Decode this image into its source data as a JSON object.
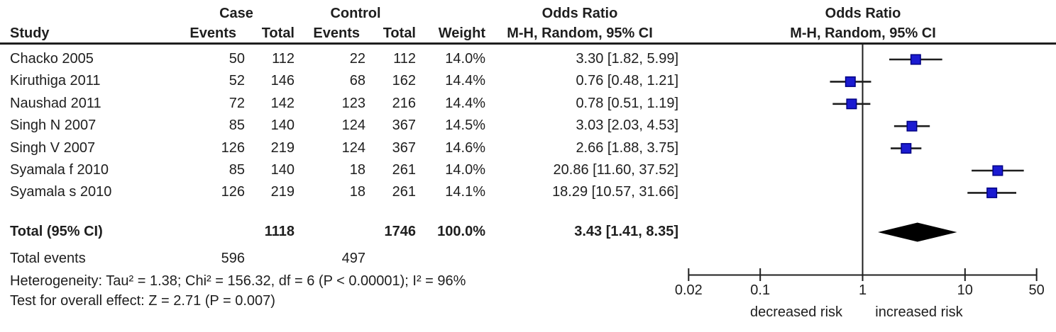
{
  "table": {
    "group_headers": {
      "case": "Case",
      "control": "Control",
      "odds_ratio_left": "Odds Ratio",
      "odds_ratio_right": "Odds Ratio"
    },
    "col_headers": {
      "study": "Study",
      "case_events": "Events",
      "case_total": "Total",
      "control_events": "Events",
      "control_total": "Total",
      "weight": "Weight",
      "mh_left": "M-H, Random, 95% CI",
      "mh_right": "M-H, Random, 95% CI"
    },
    "rows": [
      {
        "study": "Chacko 2005",
        "case_events": "50",
        "case_total": "112",
        "control_events": "22",
        "control_total": "112",
        "weight": "14.0%",
        "or_ci": "3.30 [1.82, 5.99]"
      },
      {
        "study": "Kiruthiga 2011",
        "case_events": "52",
        "case_total": "146",
        "control_events": "68",
        "control_total": "162",
        "weight": "14.4%",
        "or_ci": "0.76 [0.48, 1.21]"
      },
      {
        "study": "Naushad 2011",
        "case_events": "72",
        "case_total": "142",
        "control_events": "123",
        "control_total": "216",
        "weight": "14.4%",
        "or_ci": "0.78 [0.51, 1.19]"
      },
      {
        "study": "Singh N 2007",
        "case_events": "85",
        "case_total": "140",
        "control_events": "124",
        "control_total": "367",
        "weight": "14.5%",
        "or_ci": "3.03 [2.03, 4.53]"
      },
      {
        "study": "Singh V 2007",
        "case_events": "126",
        "case_total": "219",
        "control_events": "124",
        "control_total": "367",
        "weight": "14.6%",
        "or_ci": "2.66 [1.88, 3.75]"
      },
      {
        "study": "Syamala f 2010",
        "case_events": "85",
        "case_total": "140",
        "control_events": "18",
        "control_total": "261",
        "weight": "14.0%",
        "or_ci": "20.86 [11.60, 37.52]"
      },
      {
        "study": "Syamala s 2010",
        "case_events": "126",
        "case_total": "219",
        "control_events": "18",
        "control_total": "261",
        "weight": "14.1%",
        "or_ci": "18.29 [10.57, 31.66]"
      }
    ],
    "total_row": {
      "label": "Total (95% CI)",
      "case_total": "1118",
      "control_total": "1746",
      "weight": "100.0%",
      "or_ci": "3.43 [1.41, 8.35]"
    },
    "total_events": {
      "label": "Total events",
      "case": "596",
      "control": "497"
    },
    "heterogeneity": "Heterogeneity: Tau² = 1.38; Chi² = 156.32, df = 6 (P < 0.00001); I² = 96%",
    "overall_effect": "Test for overall effect: Z = 2.71 (P = 0.007)"
  },
  "chart_data": {
    "type": "scatter",
    "subtype": "forest-plot",
    "title": "Odds Ratio",
    "subtitle": "M-H, Random, 95% CI",
    "x_scale": "log",
    "xlim": [
      0.02,
      50
    ],
    "reference_line": 1,
    "ticks": [
      0.02,
      0.1,
      1,
      10,
      50
    ],
    "tick_labels": [
      "0.02",
      "0.1",
      "1",
      "10",
      "50"
    ],
    "xlabel_left": "decreased risk",
    "xlabel_right": "increased risk",
    "series": [
      {
        "study": "Chacko 2005",
        "or": 3.3,
        "ci_low": 1.82,
        "ci_high": 5.99,
        "weight_pct": 14.0
      },
      {
        "study": "Kiruthiga 2011",
        "or": 0.76,
        "ci_low": 0.48,
        "ci_high": 1.21,
        "weight_pct": 14.4
      },
      {
        "study": "Naushad 2011",
        "or": 0.78,
        "ci_low": 0.51,
        "ci_high": 1.19,
        "weight_pct": 14.4
      },
      {
        "study": "Singh N 2007",
        "or": 3.03,
        "ci_low": 2.03,
        "ci_high": 4.53,
        "weight_pct": 14.5
      },
      {
        "study": "Singh V 2007",
        "or": 2.66,
        "ci_low": 1.88,
        "ci_high": 3.75,
        "weight_pct": 14.6
      },
      {
        "study": "Syamala f 2010",
        "or": 20.86,
        "ci_low": 11.6,
        "ci_high": 37.52,
        "weight_pct": 14.0
      },
      {
        "study": "Syamala s 2010",
        "or": 18.29,
        "ci_low": 10.57,
        "ci_high": 31.66,
        "weight_pct": 14.1
      }
    ],
    "total": {
      "or": 3.43,
      "ci_low": 1.41,
      "ci_high": 8.35
    },
    "colors": {
      "marker_fill": "#1b1bd1",
      "marker_border": "#000082",
      "line": "#1e1e1e",
      "diamond": "#000000"
    }
  }
}
